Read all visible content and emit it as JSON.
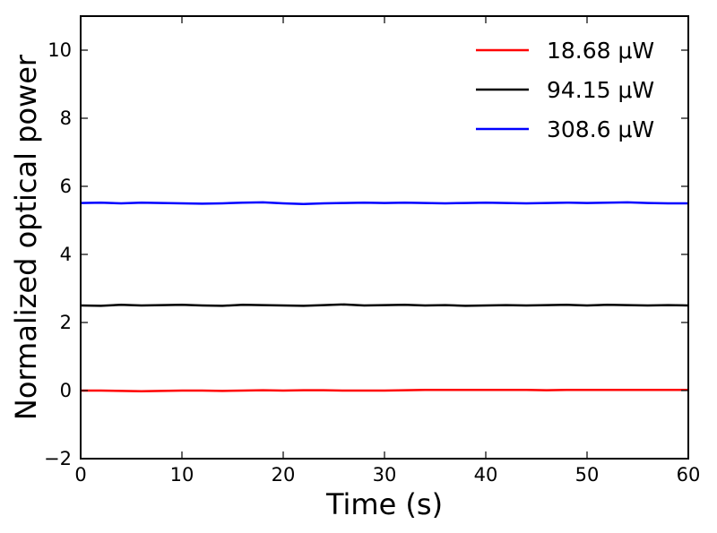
{
  "chart_data": {
    "type": "line",
    "title": "",
    "xlabel": "Time (s)",
    "ylabel": "Normalized optical power",
    "xlim": [
      0,
      60
    ],
    "ylim": [
      -2,
      11
    ],
    "xticks": [
      0,
      10,
      20,
      30,
      40,
      50,
      60
    ],
    "xtick_labels": [
      "0",
      "10",
      "20",
      "30",
      "40",
      "50",
      "60"
    ],
    "yticks": [
      -2,
      0,
      2,
      4,
      6,
      8,
      10
    ],
    "ytick_labels": [
      "−2",
      "0",
      "2",
      "4",
      "6",
      "8",
      "10"
    ],
    "grid": false,
    "legend_position": "top-right",
    "x": [
      0,
      2,
      4,
      6,
      8,
      10,
      12,
      14,
      16,
      18,
      20,
      22,
      24,
      26,
      28,
      30,
      32,
      34,
      36,
      38,
      40,
      42,
      44,
      46,
      48,
      50,
      52,
      54,
      56,
      58,
      60
    ],
    "series": [
      {
        "name": "18.68 μW",
        "color": "#ff0000",
        "values": [
          0.0,
          0.0,
          -0.01,
          -0.02,
          -0.01,
          0.0,
          0.0,
          -0.01,
          0.0,
          0.01,
          0.0,
          0.01,
          0.01,
          0.0,
          0.0,
          0.0,
          0.01,
          0.02,
          0.02,
          0.02,
          0.02,
          0.02,
          0.02,
          0.01,
          0.02,
          0.02,
          0.02,
          0.02,
          0.02,
          0.02,
          0.02
        ]
      },
      {
        "name": "94.15 μW",
        "color": "#000000",
        "values": [
          2.5,
          2.49,
          2.52,
          2.5,
          2.51,
          2.52,
          2.5,
          2.49,
          2.52,
          2.51,
          2.5,
          2.49,
          2.51,
          2.53,
          2.5,
          2.51,
          2.52,
          2.5,
          2.51,
          2.49,
          2.5,
          2.51,
          2.5,
          2.51,
          2.52,
          2.5,
          2.52,
          2.51,
          2.5,
          2.51,
          2.5
        ]
      },
      {
        "name": "308.6 μW",
        "color": "#0000ff",
        "values": [
          5.51,
          5.52,
          5.5,
          5.52,
          5.51,
          5.5,
          5.49,
          5.5,
          5.52,
          5.53,
          5.5,
          5.48,
          5.5,
          5.51,
          5.52,
          5.51,
          5.52,
          5.51,
          5.5,
          5.51,
          5.52,
          5.51,
          5.5,
          5.51,
          5.52,
          5.51,
          5.52,
          5.53,
          5.51,
          5.5,
          5.5
        ]
      }
    ]
  }
}
